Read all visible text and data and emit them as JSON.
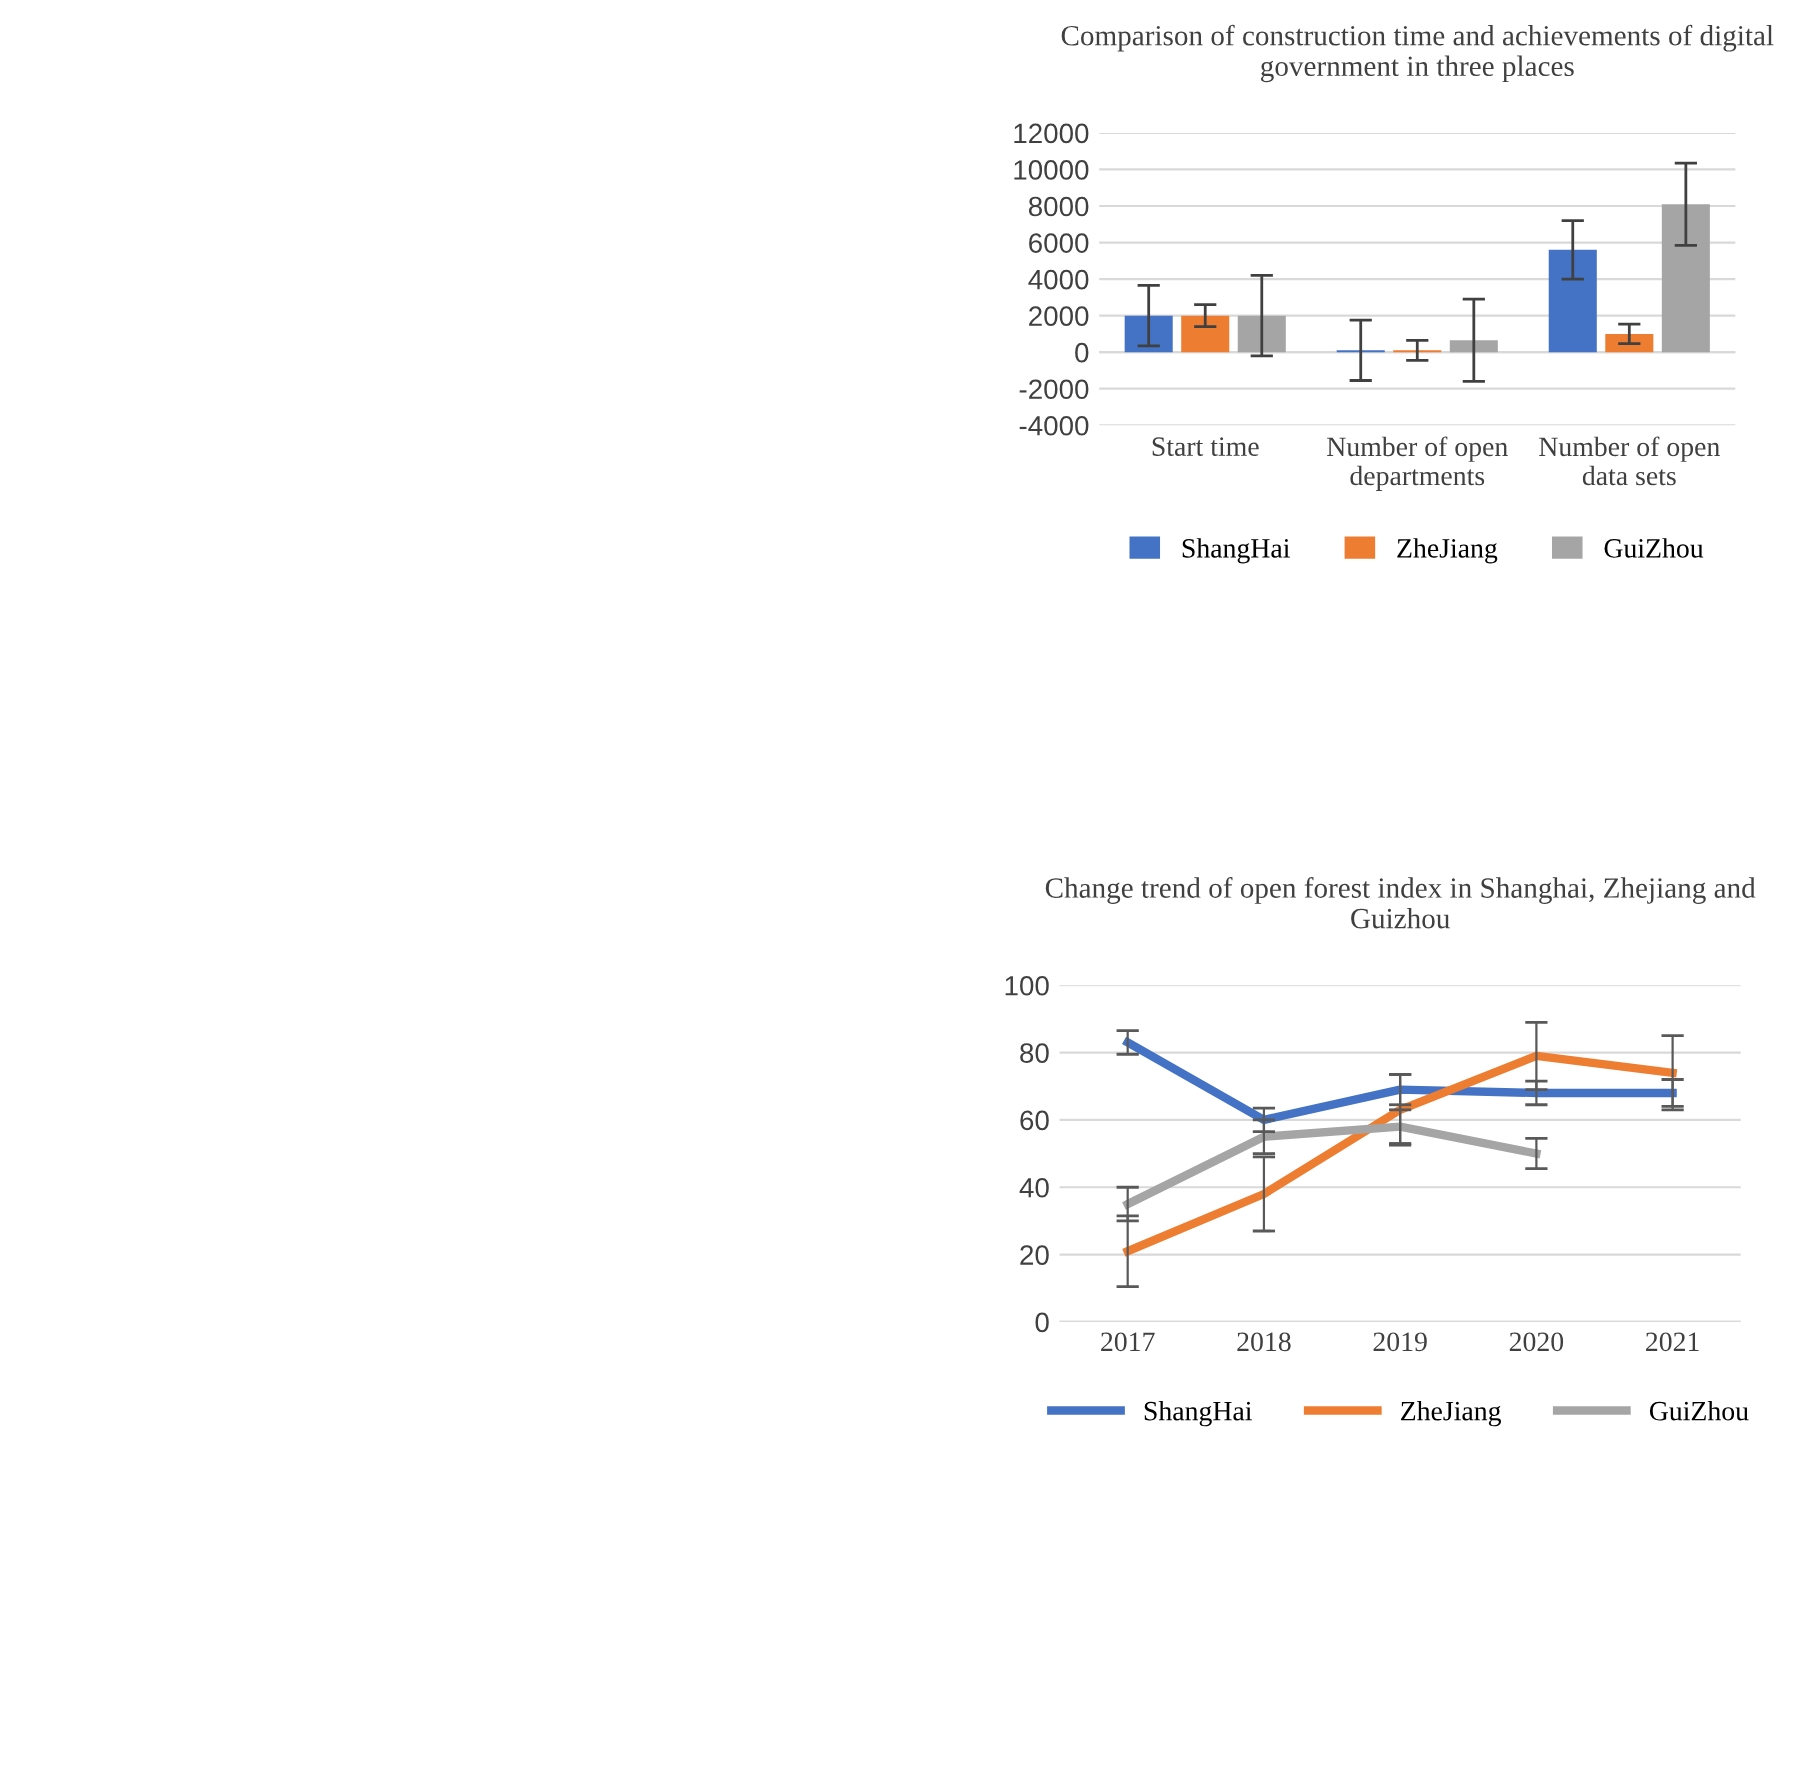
{
  "chart_data": [
    {
      "type": "bar",
      "title": "Comparison of construction time and achievements of digital government in three places",
      "categories": [
        "Start time",
        "Number of open departments",
        "Number of open data sets"
      ],
      "ylim": [
        -4000,
        12000
      ],
      "yticks": [
        -4000,
        -2000,
        0,
        2000,
        4000,
        6000,
        8000,
        10000,
        12000
      ],
      "grid": "y",
      "legend": "bottom",
      "series": [
        {
          "name": "ShangHai",
          "color": "#4472c4",
          "values": [
            2000,
            100,
            5600
          ],
          "errors": [
            1650,
            1650,
            1600
          ]
        },
        {
          "name": "ZheJiang",
          "color": "#ed7d31",
          "values": [
            2000,
            100,
            1000
          ],
          "errors": [
            600,
            550,
            530
          ]
        },
        {
          "name": "GuiZhou",
          "color": "#a5a5a5",
          "values": [
            2000,
            650,
            8100
          ],
          "errors": [
            2200,
            2250,
            2250
          ]
        }
      ]
    },
    {
      "type": "line",
      "title": "Change trend of open forest index in Shanghai, Zhejiang and Guizhou",
      "categories": [
        "2017",
        "2018",
        "2019",
        "2020",
        "2021"
      ],
      "ylim": [
        0,
        100
      ],
      "yticks": [
        0,
        20,
        40,
        60,
        80,
        100
      ],
      "grid": "y",
      "legend": "bottom",
      "marker": "none",
      "series": [
        {
          "name": "ShangHai",
          "color": "#4472c4",
          "values": [
            83,
            60,
            69,
            68,
            68
          ],
          "errors": [
            3.5,
            3.5,
            4.5,
            3.5,
            4
          ]
        },
        {
          "name": "ZheJiang",
          "color": "#ed7d31",
          "values": [
            21,
            38,
            63,
            79,
            74
          ],
          "errors": [
            10.5,
            11,
            10.5,
            10,
            11
          ]
        },
        {
          "name": "GuiZhou",
          "color": "#a5a5a5",
          "values": [
            35,
            55,
            58,
            50,
            null
          ],
          "errors": [
            5,
            5,
            5,
            4.5,
            null
          ]
        }
      ]
    }
  ]
}
